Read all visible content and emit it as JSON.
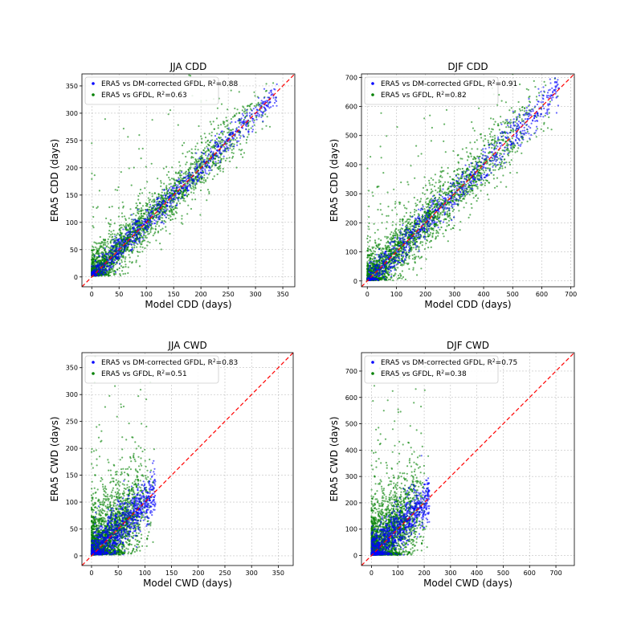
{
  "colors": {
    "corrected": "#0000ff",
    "raw": "#008000",
    "one_to_one": "#ff0000",
    "grid": "#b0b0b0"
  },
  "chart_data": [
    {
      "type": "scatter",
      "title": "JJA CDD",
      "xlabel": "Model CDD (days)",
      "ylabel": "ERA5 CDD (days)",
      "xlim": [
        -18,
        372
      ],
      "ylim": [
        -18,
        372
      ],
      "xticks": [
        0,
        50,
        100,
        150,
        200,
        250,
        300,
        350
      ],
      "yticks": [
        0,
        50,
        100,
        150,
        200,
        250,
        300,
        350
      ],
      "grid": true,
      "legend_position": "upper-left",
      "one_to_one_line": true,
      "series": [
        {
          "name": "ERA5 vs DM-corrected GFDL",
          "r2_label": "0.88",
          "r2": 0.88
        },
        {
          "name": "ERA5 vs GFDL",
          "r2_label": "0.63",
          "r2": 0.63
        }
      ]
    },
    {
      "type": "scatter",
      "title": "DJF CDD",
      "xlabel": "Model CDD (days)",
      "ylabel": "ERA5 CDD (days)",
      "xlim": [
        -20,
        712
      ],
      "ylim": [
        -20,
        712
      ],
      "xticks": [
        0,
        100,
        200,
        300,
        400,
        500,
        600,
        700
      ],
      "yticks": [
        0,
        100,
        200,
        300,
        400,
        500,
        600,
        700
      ],
      "grid": true,
      "legend_position": "upper-left",
      "one_to_one_line": true,
      "series": [
        {
          "name": "ERA5 vs DM-corrected GFDL",
          "r2_label": "0.91",
          "r2": 0.91
        },
        {
          "name": "ERA5 vs GFDL",
          "r2_label": "0.82",
          "r2": 0.82
        }
      ]
    },
    {
      "type": "scatter",
      "title": "JJA CWD",
      "xlabel": "Model CWD (days)",
      "ylabel": "ERA5 CWD (days)",
      "xlim": [
        -18,
        378
      ],
      "ylim": [
        -18,
        378
      ],
      "xticks": [
        0,
        50,
        100,
        150,
        200,
        250,
        300,
        350
      ],
      "yticks": [
        0,
        50,
        100,
        150,
        200,
        250,
        300,
        350
      ],
      "grid": true,
      "legend_position": "upper-left",
      "one_to_one_line": true,
      "series": [
        {
          "name": "ERA5 vs DM-corrected GFDL",
          "r2_label": "0.83",
          "r2": 0.83
        },
        {
          "name": "ERA5 vs GFDL",
          "r2_label": "0.51",
          "r2": 0.51
        }
      ]
    },
    {
      "type": "scatter",
      "title": "DJF CWD",
      "xlabel": "Model CWD (days)",
      "ylabel": "ERA5 CWD (days)",
      "xlim": [
        -38,
        770
      ],
      "ylim": [
        -38,
        770
      ],
      "xticks": [
        0,
        100,
        200,
        300,
        400,
        500,
        600,
        700
      ],
      "yticks": [
        0,
        100,
        200,
        300,
        400,
        500,
        600,
        700
      ],
      "grid": true,
      "legend_position": "upper-left",
      "one_to_one_line": true,
      "series": [
        {
          "name": "ERA5 vs DM-corrected GFDL",
          "r2_label": "0.75",
          "r2": 0.75
        },
        {
          "name": "ERA5 vs GFDL",
          "r2_label": "0.38",
          "r2": 0.38
        }
      ]
    }
  ]
}
